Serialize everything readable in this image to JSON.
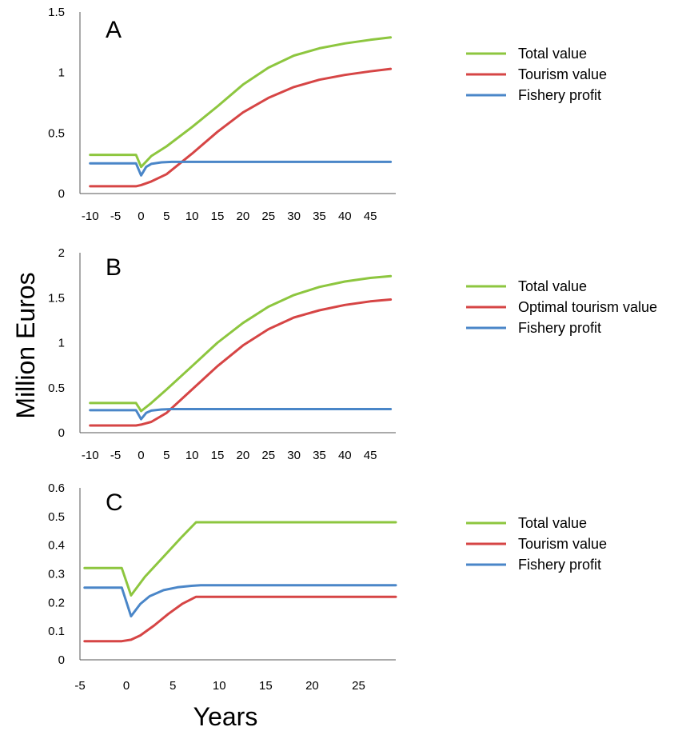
{
  "ylabel": "Million Euros",
  "xlabel": "Years",
  "colors": {
    "total": "#8dc63f",
    "tourism": "#d64545",
    "fishery": "#4a86c8"
  },
  "chart_data": [
    {
      "panel": "A",
      "type": "line",
      "xlim": [
        -12,
        50
      ],
      "ylim": [
        0,
        1.5
      ],
      "xticks": [
        "-10",
        "-5",
        "0",
        "5",
        "10",
        "15",
        "20",
        "25",
        "30",
        "35",
        "40",
        "45"
      ],
      "yticks": [
        "0",
        "0.5",
        "1",
        "1.5"
      ],
      "legend": [
        "Total value",
        "Tourism value",
        "Fishery profit"
      ],
      "series": [
        {
          "name": "Total value",
          "color": "#8dc63f",
          "x": [
            -10,
            -1,
            0,
            2,
            5,
            10,
            15,
            20,
            25,
            30,
            35,
            40,
            45,
            49
          ],
          "y": [
            0.32,
            0.32,
            0.22,
            0.31,
            0.39,
            0.55,
            0.72,
            0.9,
            1.04,
            1.14,
            1.2,
            1.24,
            1.27,
            1.29
          ]
        },
        {
          "name": "Tourism value",
          "color": "#d64545",
          "x": [
            -10,
            -1,
            0,
            2,
            5,
            10,
            15,
            20,
            25,
            30,
            35,
            40,
            45,
            49
          ],
          "y": [
            0.06,
            0.06,
            0.07,
            0.1,
            0.16,
            0.33,
            0.51,
            0.67,
            0.79,
            0.88,
            0.94,
            0.98,
            1.01,
            1.03
          ]
        },
        {
          "name": "Fishery profit",
          "color": "#4a86c8",
          "x": [
            -10,
            -1,
            0,
            1,
            2,
            4,
            6,
            10,
            20,
            49
          ],
          "y": [
            0.25,
            0.25,
            0.15,
            0.22,
            0.245,
            0.258,
            0.262,
            0.262,
            0.262,
            0.262
          ]
        }
      ]
    },
    {
      "panel": "B",
      "type": "line",
      "xlim": [
        -12,
        50
      ],
      "ylim": [
        0,
        2
      ],
      "xticks": [
        "-10",
        "-5",
        "0",
        "5",
        "10",
        "15",
        "20",
        "25",
        "30",
        "35",
        "40",
        "45"
      ],
      "yticks": [
        "0",
        "0.5",
        "1",
        "1.5",
        "2"
      ],
      "legend": [
        "Total value",
        "Optimal tourism value",
        "Fishery profit"
      ],
      "series": [
        {
          "name": "Total value",
          "color": "#8dc63f",
          "x": [
            -10,
            -1,
            0,
            2,
            5,
            10,
            15,
            20,
            25,
            30,
            35,
            40,
            45,
            49
          ],
          "y": [
            0.33,
            0.33,
            0.24,
            0.33,
            0.48,
            0.74,
            1.0,
            1.22,
            1.4,
            1.53,
            1.62,
            1.68,
            1.72,
            1.74
          ]
        },
        {
          "name": "Optimal tourism value",
          "color": "#d64545",
          "x": [
            -10,
            -1,
            0,
            2,
            5,
            10,
            15,
            20,
            25,
            30,
            35,
            40,
            45,
            49
          ],
          "y": [
            0.08,
            0.08,
            0.09,
            0.12,
            0.22,
            0.48,
            0.74,
            0.97,
            1.15,
            1.28,
            1.36,
            1.42,
            1.46,
            1.48
          ]
        },
        {
          "name": "Fishery profit",
          "color": "#4a86c8",
          "x": [
            -10,
            -1,
            0,
            1,
            2,
            4,
            6,
            10,
            20,
            49
          ],
          "y": [
            0.25,
            0.25,
            0.15,
            0.22,
            0.245,
            0.258,
            0.262,
            0.262,
            0.262,
            0.262
          ]
        }
      ]
    },
    {
      "panel": "C",
      "type": "line",
      "xlim": [
        -5,
        29
      ],
      "ylim": [
        0,
        0.6
      ],
      "xticks": [
        "-5",
        "0",
        "5",
        "10",
        "15",
        "20",
        "25"
      ],
      "yticks": [
        "0",
        "0.1",
        "0.2",
        "0.3",
        "0.4",
        "0.5",
        "0.6"
      ],
      "legend": [
        "Total value",
        "Tourism value",
        "Fishery profit"
      ],
      "series": [
        {
          "name": "Total value",
          "color": "#8dc63f",
          "x": [
            -4.5,
            -0.5,
            0.5,
            2,
            4,
            6,
            7.5,
            29
          ],
          "y": [
            0.32,
            0.32,
            0.225,
            0.29,
            0.36,
            0.43,
            0.48,
            0.48
          ]
        },
        {
          "name": "Tourism value",
          "color": "#d64545",
          "x": [
            -4.5,
            -0.5,
            0.5,
            1.5,
            3,
            4.5,
            6,
            7.5,
            29
          ],
          "y": [
            0.065,
            0.065,
            0.07,
            0.085,
            0.12,
            0.16,
            0.195,
            0.22,
            0.22
          ]
        },
        {
          "name": "Fishery profit",
          "color": "#4a86c8",
          "x": [
            -4.5,
            -0.5,
            0.5,
            1.5,
            2.5,
            4,
            5.5,
            7,
            8,
            29
          ],
          "y": [
            0.252,
            0.252,
            0.152,
            0.195,
            0.222,
            0.243,
            0.253,
            0.258,
            0.26,
            0.26
          ]
        }
      ]
    }
  ]
}
